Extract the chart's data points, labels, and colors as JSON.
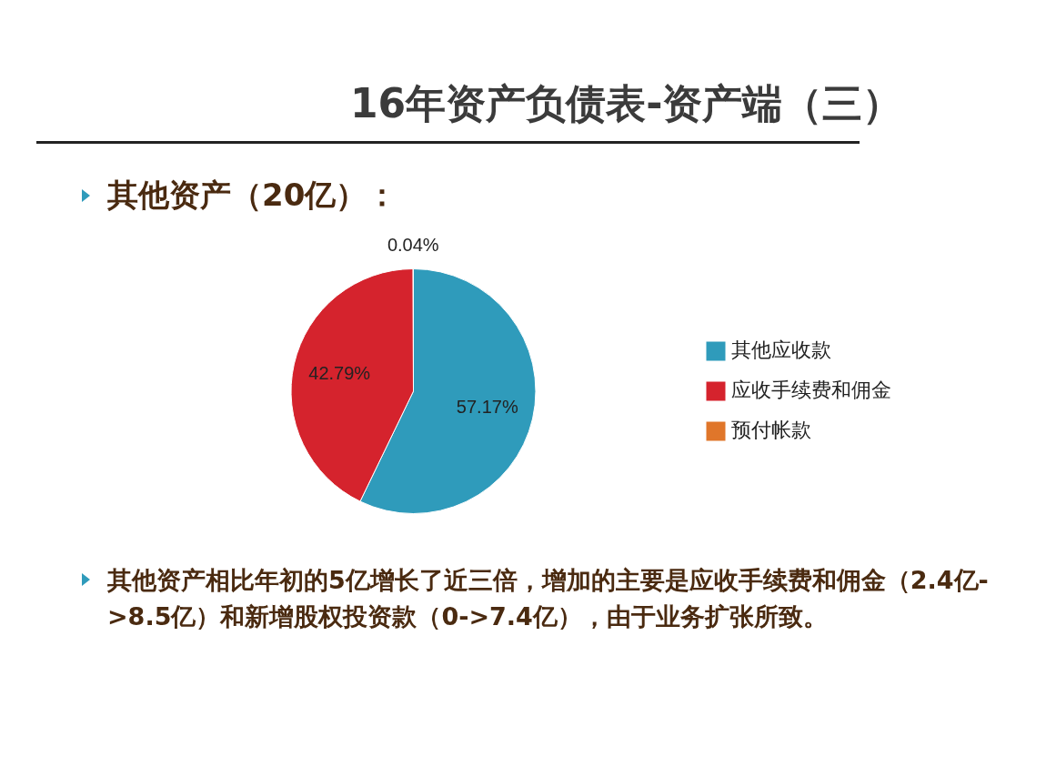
{
  "chart_data": {
    "type": "pie",
    "title": "16年资产负债表-资产端（三）",
    "subtitle": "其他资产（20亿）：",
    "categories": [
      "其他应收款",
      "应收手续费和佣金",
      "预付帐款"
    ],
    "values": [
      57.17,
      42.79,
      0.04
    ],
    "value_labels": [
      "57.17%",
      "42.79%",
      "0.04%"
    ],
    "colors": [
      "#2f9bbb",
      "#d5232d",
      "#e0762a"
    ],
    "legend": "right",
    "annotations": [
      "其他资产相比年初的5亿增长了近三倍，增加的主要是应收手续费和佣金（2.4亿->8.5亿）和新增股权投资款（0->7.4亿），由于业务扩张所致。"
    ]
  }
}
